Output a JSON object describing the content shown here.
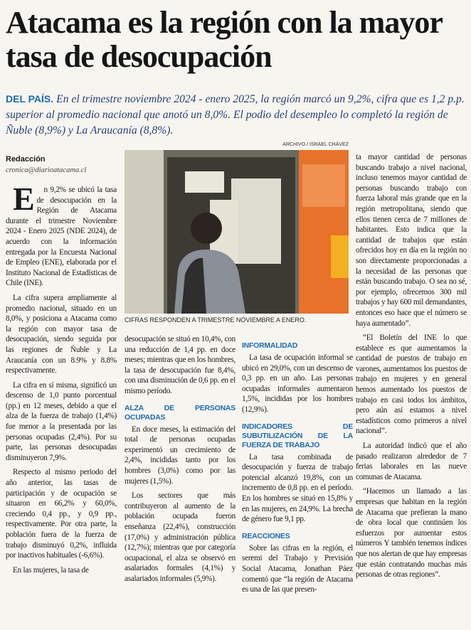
{
  "header": {
    "title": "Atacama es la región con la mayor tasa de desocupación",
    "kicker": "DEL PAÍS.",
    "lede": "En el trimestre noviembre 2024 - enero 2025, la región marcó un 9,2%, cifra que es 1,2 p.p. superior al promedio nacional que anotó un 8,0%. El podio del desempleo lo completó la región de Ñuble (8,9%) y La Araucanía (8,8%)."
  },
  "byline": {
    "author": "Redacción",
    "email": "cronica@diarioatacama.cl"
  },
  "photo": {
    "credit": "ARCHIVO / ISRAEL CHÁVEZ",
    "caption": "CIFRAS RESPONDEN A TRIMESTRE NOVIEMBRE A ENERO."
  },
  "columns": [
    [
      {
        "paragraph": "En 9,2% se ubicó la tasa de desocupación en la Región de Atacama durante el trimestre Noviembre 2024 - Enero 2025 (NDE 2024), de acuerdo con la información entregada por la Encuesta Nacional de Empleo (ENE), elaborada por el Instituto Nacional de Estadísticas de Chile (INE)."
      },
      {
        "paragraph": "La cifra supera ampliamente al promedio nacional, situado en un 8,0%, y posiciona a Atacama como la región con mayor tasa de desocupación, siendo seguida por las regiones de Ñuble y La Araucanía con un 8.9% y 8.8% respectivamente."
      },
      {
        "paragraph": "La cifra en sí misma, significó un descenso de 1,0 punto porcentual (pp.) en 12 meses, debido a que el alza de la fuerza de trabajo (1,4%) fue menor a la presentada por las personas ocupadas (2,4%). Por su parte, las personas desocupadas disminuyeron 7,9%."
      },
      {
        "paragraph": "Respecto al mismo periodo del año anterior, las tasas de participación y de ocupación se situaron en 66,2% y 60,0%, creciendo 0,4 pp., y 0,9 pp., respectivamente. Por otra parte, la población fuera de la fuerza de trabajo disminuyó 0,2%, influida por inactivos habituales (-6,6%)."
      },
      {
        "paragraph": "En las mujeres, la tasa de"
      }
    ],
    [
      {
        "paragraph": "desocupación se situó en 10,4%, con una reducción de 1,4 pp. en doce meses; mientras que en los hombres, la tasa de desocupación fue 8,4%, con una disminución de 0,6 pp. en el mismo período."
      },
      {
        "heading": "ALZA DE PERSONAS OCUPADAS"
      },
      {
        "paragraph": "En doce meses, la estimación del total de personas ocupadas experimentó un crecimiento de 2,4%, incididas tanto por los hombres (3,0%) como por las mujeres (1,5%)."
      },
      {
        "paragraph": "Los sectores que más contribuyeron al aumento de la población ocupada fueron enseñanza (22,4%), construcción (17,0%) y administración pública (12,7%); mientras que por categoría ocupacional, el alza se observó en asalariados formales (4,1%) y asalariados informales (5,9%)."
      }
    ],
    [
      {
        "heading": "INFORMALIDAD"
      },
      {
        "paragraph": "La tasa de ocupación informal se ubicó en 29,0%, con un descenso de 0,3 pp. en un año. Las personas ocupadas informales aumentaron 1,5%, incididas por los hombres (12,9%)."
      },
      {
        "heading": "INDICADORES DE SUBUTILIZACIÓN DE LA FUERZA DE TRABAJO"
      },
      {
        "paragraph": "La tasa combinada de desocupación y fuerza de trabajo potencial alcanzó 19,8%, con un incremento de 0,8 pp. en el período. En los hombres se situó en 15,8% y en las mujeres, en 24,9%. La brecha de género fue 9,1 pp."
      },
      {
        "heading": "REACCIONES"
      },
      {
        "paragraph": "Sobre las cifras en la región, el seremi del Trabajo y Previsión Social Atacama, Jonathan Páez comentó que “la región de Atacama es una de las que presen-"
      }
    ],
    [
      {
        "paragraph": "ta mayor cantidad de personas buscando trabajo a nivel nacional, incluso tenemos mayor cantidad de personas buscando trabajo con fuerza laboral más grande que en la región metropolitana, siendo que ellos tienen cerca de 7 millones de habitantes. Esto indica que la cantidad de trabajos que están ofrecidos hoy en día en la región no son directamente proporcionadas a la necesidad de las personas que están buscando trabajo. O sea no sé, por ejemplo, ofrecemos 300 mil trabajos y hay 600 mil demandantes, entonces eso hace que el número se haya aumentado”."
      },
      {
        "paragraph": "“El Boletín del INE lo que establece es que aumentamos la cantidad de puestos de trabajo en varones, aumentamos los puestos de trabajo en mujeres y en general hemos aumentado los puestos de trabajo en casi todos los ámbitos, pero aún así estamos a nivel estadísticos como primeros a nivel nacional”."
      },
      {
        "paragraph": "La autoridad indicó que el año pasado realizaron alrededor de 7 ferias laborales en las nueve comunas de Atacama."
      },
      {
        "paragraph": "“Hacemos un llamado a las empresas que habitan en la región de Atacama que prefieran la mano de obra local que continúen los esfuerzos por aumentar estos números Y también tenemos índices que nos alertan de que hay empresas que están contratando muchas más personas de otras regiones”."
      }
    ]
  ]
}
